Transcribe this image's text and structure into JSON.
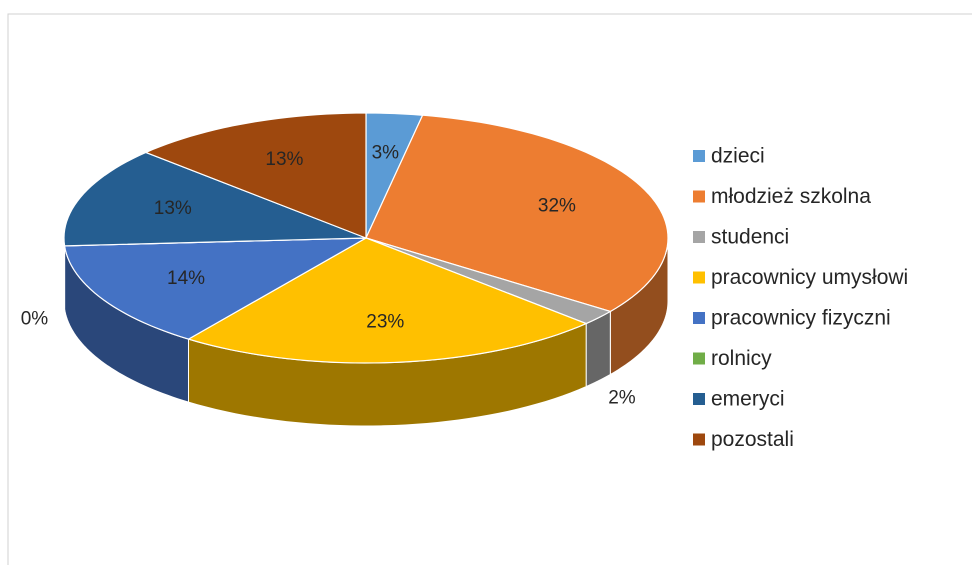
{
  "chart_data": {
    "type": "pie",
    "categories": [
      "dzieci",
      "młodzież szkolna",
      "studenci",
      "pracownicy umysłowi",
      "pracownicy fizyczni",
      "rolnicy",
      "emeryci",
      "pozostali"
    ],
    "values": [
      3,
      32,
      2,
      23,
      14,
      0,
      13,
      13
    ],
    "value_labels": [
      "3%",
      "32%",
      "2%",
      "23%",
      "14%",
      "0%",
      "13%",
      "13%"
    ],
    "colors": [
      "#5b9bd5",
      "#ed7d31",
      "#a5a5a5",
      "#ffc000",
      "#4472c4",
      "#70ad47",
      "#255e91",
      "#9e480e"
    ],
    "legend": "right"
  }
}
